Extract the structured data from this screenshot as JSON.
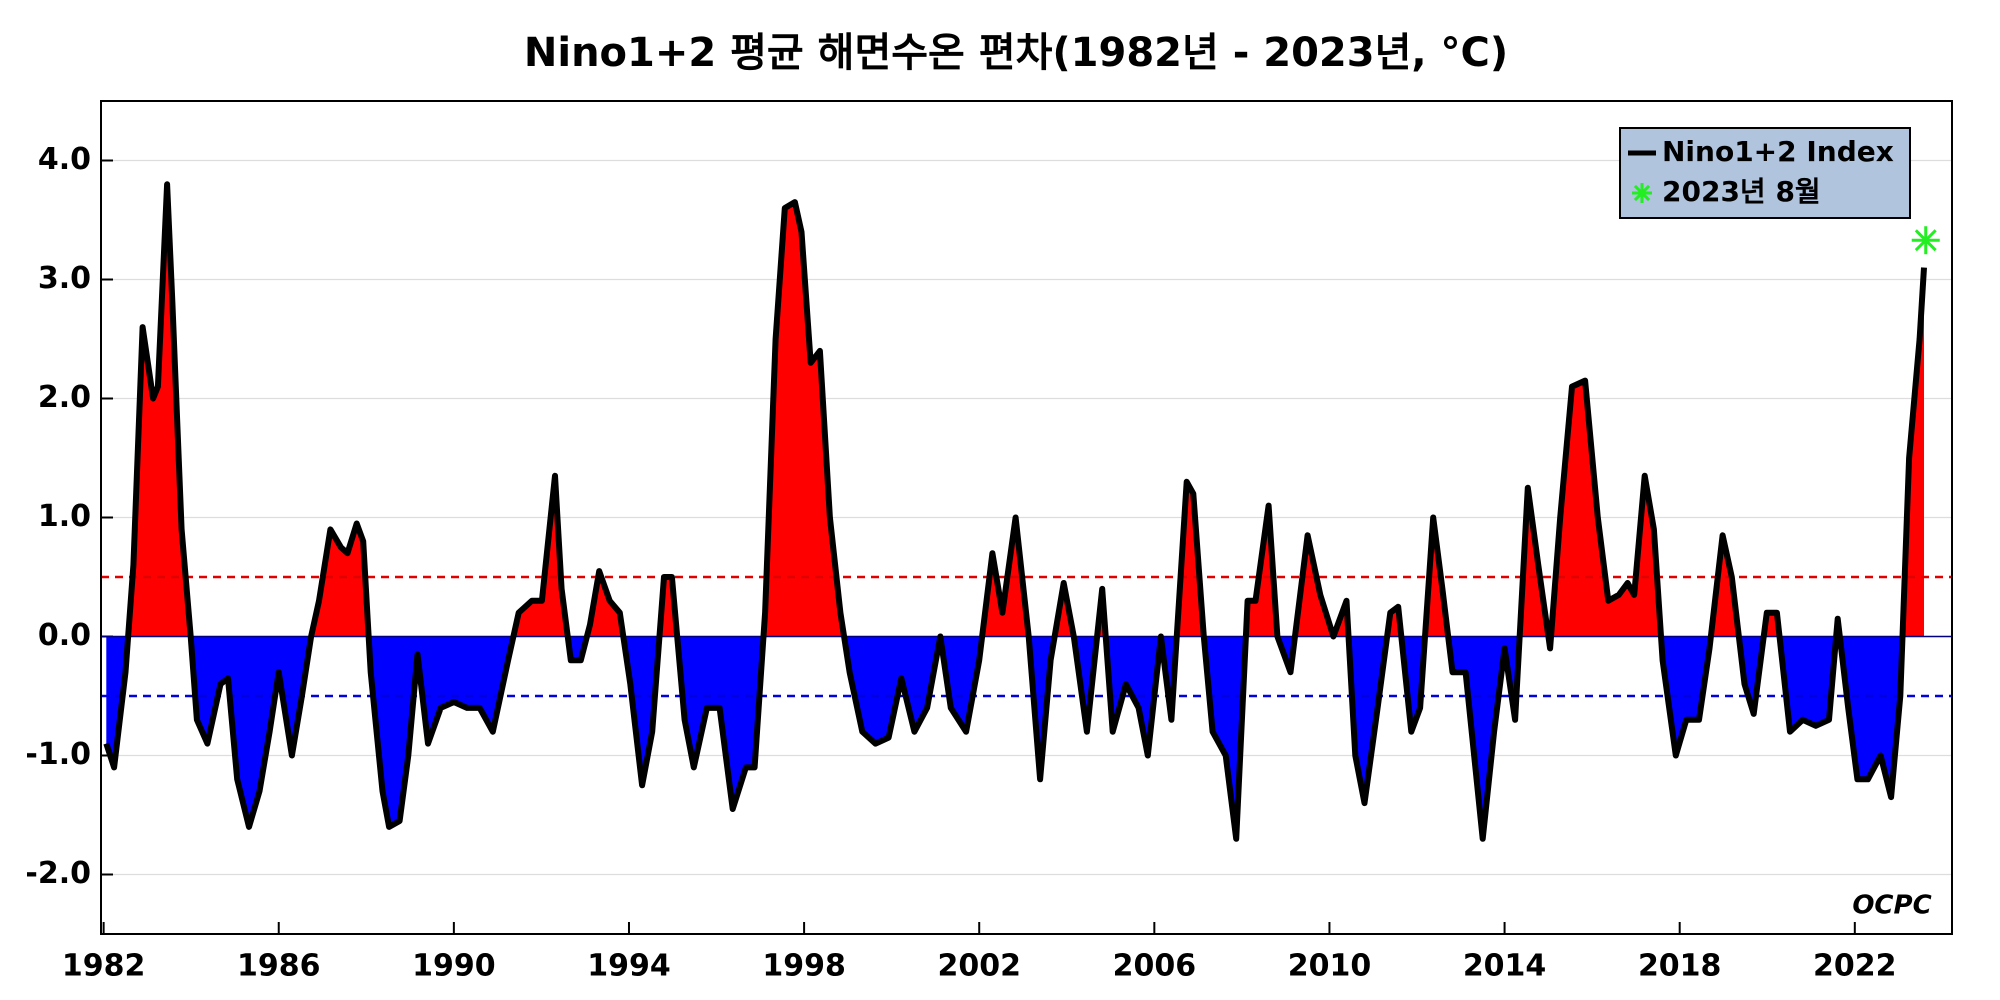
{
  "chart_data": {
    "type": "area-line",
    "title": "Nino1+2 평균 해면수온 편차(1982년 - 2023년, °C)",
    "logo": "OCPC",
    "xlim": [
      1981.94,
      2024.22
    ],
    "xticks": [
      1982,
      1986,
      1990,
      1994,
      1998,
      2002,
      2006,
      2010,
      2014,
      2018,
      2022
    ],
    "ylim": [
      -2.5,
      4.5
    ],
    "yticks": [
      {
        "value": -2,
        "label": "-2.0"
      },
      {
        "value": -1,
        "label": "-1.0"
      },
      {
        "value": 0,
        "label": "0.0"
      },
      {
        "value": 1,
        "label": "1.0"
      },
      {
        "value": 2,
        "label": "2.0"
      },
      {
        "value": 3,
        "label": "3.0"
      },
      {
        "value": 4,
        "label": "4.0"
      }
    ],
    "grid": true,
    "positive_color": "#ff0000",
    "negative_color": "#0000ff",
    "reference_lines": [
      {
        "value": 0.5,
        "color": "#e00000"
      },
      {
        "value": -0.5,
        "color": "#0000e0"
      }
    ],
    "legend_position": "upper right",
    "series": [
      {
        "name": "Nino1+2 Index",
        "color": "#000000",
        "x": [
          1982.06,
          1982.24,
          1982.5,
          1982.68,
          1982.89,
          1983.13,
          1983.24,
          1983.45,
          1983.57,
          1983.78,
          1983.99,
          1984.13,
          1984.37,
          1984.67,
          1984.84,
          1985.05,
          1985.32,
          1985.56,
          1985.79,
          1986.0,
          1986.3,
          1986.53,
          1986.74,
          1986.92,
          1987.18,
          1987.42,
          1987.57,
          1987.78,
          1987.93,
          1988.1,
          1988.37,
          1988.52,
          1988.76,
          1988.96,
          1989.17,
          1989.41,
          1989.7,
          1990.0,
          1990.3,
          1990.59,
          1990.89,
          1991.24,
          1991.48,
          1991.78,
          1992.01,
          1992.31,
          1992.46,
          1992.67,
          1992.9,
          1993.11,
          1993.32,
          1993.56,
          1993.79,
          1994.03,
          1994.3,
          1994.53,
          1994.8,
          1994.98,
          1995.27,
          1995.48,
          1995.78,
          1996.07,
          1996.37,
          1996.67,
          1996.87,
          1997.11,
          1997.35,
          1997.56,
          1997.79,
          1997.94,
          1998.15,
          1998.36,
          1998.59,
          1998.83,
          1999.04,
          1999.33,
          1999.63,
          1999.93,
          2000.22,
          2000.52,
          2000.81,
          2001.11,
          2001.35,
          2001.7,
          2002.0,
          2002.3,
          2002.53,
          2002.83,
          2003.13,
          2003.39,
          2003.63,
          2003.93,
          2004.16,
          2004.46,
          2004.81,
          2005.05,
          2005.35,
          2005.64,
          2005.85,
          2006.15,
          2006.39,
          2006.74,
          2006.89,
          2007.13,
          2007.33,
          2007.63,
          2007.87,
          2008.13,
          2008.31,
          2008.61,
          2008.81,
          2009.11,
          2009.5,
          2009.79,
          2010.09,
          2010.39,
          2010.59,
          2010.8,
          2011.1,
          2011.39,
          2011.57,
          2011.87,
          2012.07,
          2012.37,
          2012.58,
          2012.81,
          2013.11,
          2013.5,
          2013.76,
          2014.0,
          2014.24,
          2014.53,
          2014.77,
          2015.04,
          2015.27,
          2015.54,
          2015.84,
          2016.13,
          2016.37,
          2016.61,
          2016.81,
          2016.96,
          2017.2,
          2017.41,
          2017.61,
          2017.91,
          2018.15,
          2018.44,
          2018.68,
          2018.98,
          2019.19,
          2019.48,
          2019.69,
          2019.99,
          2020.22,
          2020.52,
          2020.81,
          2021.11,
          2021.41,
          2021.61,
          2021.85,
          2022.06,
          2022.3,
          2022.59,
          2022.83,
          2023.04,
          2023.24,
          2023.48,
          2023.58
        ],
        "values": [
          -0.9,
          -1.1,
          -0.3,
          0.6,
          2.6,
          2.0,
          2.1,
          3.8,
          2.8,
          0.9,
          0.0,
          -0.7,
          -0.9,
          -0.4,
          -0.35,
          -1.2,
          -1.6,
          -1.3,
          -0.8,
          -0.3,
          -1.0,
          -0.5,
          0.0,
          0.3,
          0.9,
          0.75,
          0.7,
          0.95,
          0.8,
          -0.3,
          -1.3,
          -1.6,
          -1.55,
          -1.0,
          -0.15,
          -0.9,
          -0.6,
          -0.55,
          -0.6,
          -0.6,
          -0.8,
          -0.2,
          0.2,
          0.3,
          0.3,
          1.35,
          0.4,
          -0.2,
          -0.2,
          0.1,
          0.55,
          0.3,
          0.2,
          -0.4,
          -1.25,
          -0.8,
          0.5,
          0.5,
          -0.7,
          -1.1,
          -0.6,
          -0.6,
          -1.45,
          -1.1,
          -1.1,
          0.2,
          2.5,
          3.6,
          3.65,
          3.4,
          2.3,
          2.4,
          1.0,
          0.2,
          -0.3,
          -0.8,
          -0.9,
          -0.85,
          -0.35,
          -0.8,
          -0.6,
          0.0,
          -0.6,
          -0.8,
          -0.2,
          0.7,
          0.2,
          1.0,
          0.0,
          -1.2,
          -0.2,
          0.45,
          0.0,
          -0.8,
          0.4,
          -0.8,
          -0.4,
          -0.6,
          -1.0,
          0.0,
          -0.7,
          1.3,
          1.2,
          0.0,
          -0.8,
          -1.0,
          -1.7,
          0.3,
          0.3,
          1.1,
          0.0,
          -0.3,
          0.85,
          0.35,
          0.0,
          0.3,
          -1.0,
          -1.4,
          -0.6,
          0.2,
          0.25,
          -0.8,
          -0.6,
          1.0,
          0.4,
          -0.3,
          -0.3,
          -1.7,
          -0.8,
          -0.1,
          -0.7,
          1.25,
          0.6,
          -0.1,
          1.0,
          2.1,
          2.15,
          1.0,
          0.3,
          0.35,
          0.45,
          0.35,
          1.35,
          0.9,
          -0.2,
          -1.0,
          -0.7,
          -0.7,
          -0.1,
          0.85,
          0.5,
          -0.4,
          -0.65,
          0.2,
          0.2,
          -0.8,
          -0.7,
          -0.75,
          -0.7,
          0.15,
          -0.6,
          -1.2,
          -1.2,
          -1.0,
          -1.35,
          -0.5,
          1.5,
          2.5,
          3.1
        ]
      }
    ],
    "marker": {
      "name": "2023년 8월",
      "color": "#22ee22",
      "x": 2023.62,
      "y": 3.33
    }
  }
}
